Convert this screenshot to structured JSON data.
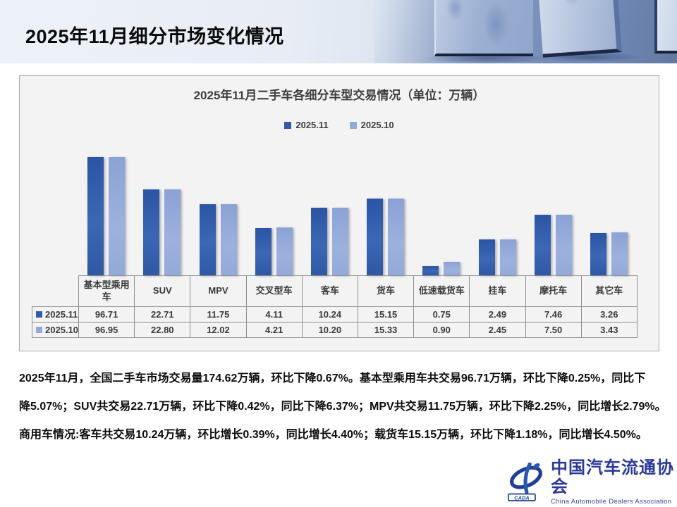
{
  "slide_title": "2025年11月细分市场变化情况",
  "chart_data": {
    "type": "bar",
    "title": "2025年11月二手车各细分车型交易情况（单位：万辆）",
    "categories": [
      "基本型乘用车",
      "SUV",
      "MPV",
      "交叉型车",
      "客车",
      "货车",
      "低速载货车",
      "挂车",
      "摩托车",
      "其它车"
    ],
    "series": [
      {
        "name": "2025.11",
        "color": "#2e5cab",
        "values": [
          96.71,
          22.71,
          11.75,
          4.11,
          10.24,
          15.15,
          0.75,
          2.49,
          7.46,
          3.26
        ]
      },
      {
        "name": "2025.10",
        "color": "#93a9d9",
        "values": [
          96.95,
          22.8,
          12.02,
          4.21,
          10.2,
          15.33,
          0.9,
          2.45,
          7.5,
          3.43
        ]
      }
    ],
    "legend_position": "top",
    "grid": false,
    "scale": "log",
    "scale_min": 0.5,
    "data_table_shown": true,
    "value_decimals": 2
  },
  "body_text": {
    "lines": [
      "2025年11月，全国二手车市场交易量174.62万辆，环比下降0.67%。基本型乘用车共交易96.71万辆，环比下降0.25%，同比下",
      "降5.07%；SUV共交易22.71万辆，环比下降0.42%，同比下降6.37%；MPV共交易11.75万辆，环比下降2.25%，同比增长2.79%。",
      "商用车情况:客车共交易10.24万辆，环比增长0.39%，同比增长4.40%；载货车15.15万辆，环比下降1.18%，同比增长4.50%。"
    ]
  },
  "logo": {
    "name_cn": "中国汽车流通协会",
    "name_en": "China Automobile Dealers Association",
    "emblem_text": "CADA",
    "brand_color": "#2c3b98"
  },
  "colors": {
    "series_dark": "#2e5cab",
    "series_light": "#93a9d9",
    "panel_bg": "#f3f3f4",
    "panel_border": "#a9a9a9",
    "band_blue": "#7e96c0",
    "text_dark": "#3f3f3f"
  }
}
